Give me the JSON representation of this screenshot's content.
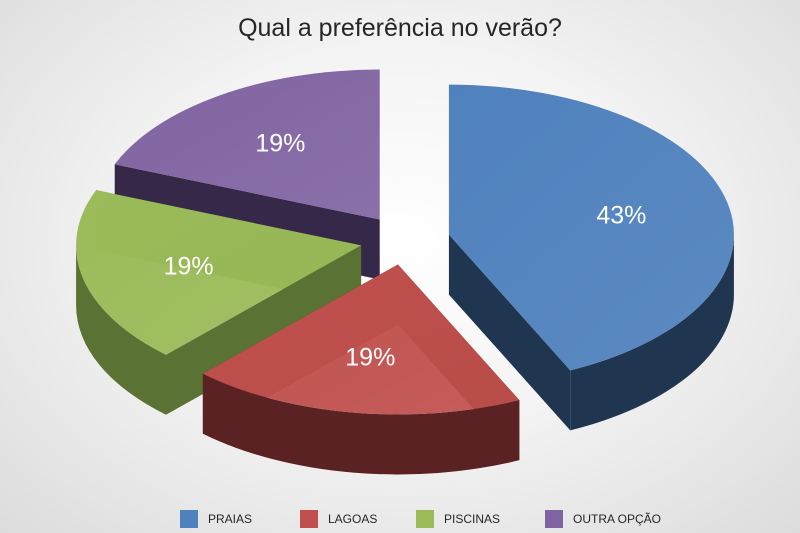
{
  "chart_data": {
    "type": "pie",
    "title": "Qual a preferência no verão?",
    "categories": [
      "PRAIAS",
      "LAGOAS",
      "PISCINAS",
      "OUTRA OPÇÃO"
    ],
    "values": [
      43,
      19,
      19,
      19
    ],
    "data_labels": [
      "43%",
      "19%",
      "19%",
      "19%"
    ],
    "colors": [
      "#4F81BD",
      "#C0504D",
      "#9BBB59",
      "#8064A2"
    ],
    "side_colors": [
      "#1F3550",
      "#5A2222",
      "#5A7233",
      "#352848"
    ],
    "style": "3d-exploded",
    "legend": "bottom"
  }
}
